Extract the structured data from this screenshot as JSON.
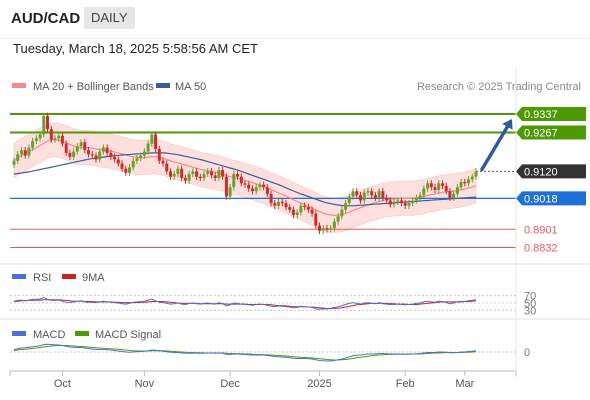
{
  "header": {
    "symbol": "AUD/CAD",
    "timeframe": "DAILY"
  },
  "datetime": "Tuesday, March 18, 2025 5:58:56 AM CET",
  "legend": {
    "ma20_label": "MA 20 + Bollinger Bands",
    "ma50_label": "MA 50",
    "credit": "Research © 2025 Trading Central"
  },
  "colors": {
    "up_candle": "#6b9e2c",
    "down_candle": "#cc2c2c",
    "ma20": "#f08c8c",
    "bollinger_fill": "#fde0dd",
    "ma50": "#3a5d9c",
    "resistance": "#4e9a06",
    "support": "#1f6fd8",
    "pivot_red": "#e05c5c",
    "current": "#333333",
    "rsi": "#4a6fd8",
    "rsi_ma": "#cc2222",
    "macd": "#4a6fd8",
    "macd_signal": "#4e9a06",
    "arrow": "#2d5aa0"
  },
  "chart_data": [
    {
      "type": "candlestick",
      "title": "AUD/CAD DAILY",
      "x_labels": [
        "Oct",
        "Nov",
        "Dec",
        "2025",
        "Feb",
        "Mar"
      ],
      "ylim": [
        0.88,
        0.939
      ],
      "levels": [
        {
          "value": 0.9337,
          "label": "0.9337",
          "kind": "resistance"
        },
        {
          "value": 0.9267,
          "label": "0.9267",
          "kind": "resistance"
        },
        {
          "value": 0.912,
          "label": "0.9120",
          "kind": "current"
        },
        {
          "value": 0.9018,
          "label": "0.9018",
          "kind": "support"
        },
        {
          "value": 0.8901,
          "label": "0.8901",
          "kind": "pivot"
        },
        {
          "value": 0.8832,
          "label": "0.8832",
          "kind": "pivot"
        }
      ],
      "close": [
        0.916,
        0.9185,
        0.92,
        0.918,
        0.921,
        0.9235,
        0.9245,
        0.926,
        0.933,
        0.928,
        0.924,
        0.9245,
        0.9255,
        0.9225,
        0.919,
        0.9175,
        0.9195,
        0.9215,
        0.923,
        0.92,
        0.9185,
        0.918,
        0.9165,
        0.9195,
        0.921,
        0.919,
        0.9175,
        0.9165,
        0.915,
        0.913,
        0.9115,
        0.9135,
        0.916,
        0.917,
        0.918,
        0.9195,
        0.9225,
        0.926,
        0.9205,
        0.916,
        0.915,
        0.912,
        0.91,
        0.911,
        0.913,
        0.9095,
        0.9085,
        0.911,
        0.912,
        0.91,
        0.9095,
        0.911,
        0.912,
        0.9105,
        0.9095,
        0.9125,
        0.91,
        0.9025,
        0.906,
        0.911,
        0.91,
        0.9075,
        0.907,
        0.9055,
        0.9045,
        0.906,
        0.907,
        0.906,
        0.9035,
        0.9,
        0.899,
        0.9005,
        0.9,
        0.8985,
        0.8975,
        0.8955,
        0.8965,
        0.899,
        0.8985,
        0.8975,
        0.896,
        0.8915,
        0.8895,
        0.8905,
        0.89,
        0.8905,
        0.893,
        0.895,
        0.8975,
        0.9,
        0.9025,
        0.9045,
        0.903,
        0.901,
        0.904,
        0.9045,
        0.903,
        0.902,
        0.9045,
        0.902,
        0.901,
        0.8995,
        0.9005,
        0.901,
        0.9,
        0.899,
        0.9,
        0.901,
        0.902,
        0.903,
        0.9055,
        0.9075,
        0.906,
        0.905,
        0.9075,
        0.9065,
        0.9045,
        0.902,
        0.9035,
        0.906,
        0.908,
        0.9075,
        0.909,
        0.91,
        0.912
      ],
      "ma20": [
        0.916,
        0.917,
        0.918,
        0.9188,
        0.9195,
        0.9202,
        0.921,
        0.9218,
        0.9226,
        0.9234,
        0.9238,
        0.924,
        0.9238,
        0.9234,
        0.9228,
        0.9222,
        0.9216,
        0.9212,
        0.921,
        0.921,
        0.921,
        0.9208,
        0.9205,
        0.9202,
        0.92,
        0.9198,
        0.9196,
        0.9193,
        0.919,
        0.9186,
        0.9182,
        0.9178,
        0.9175,
        0.9173,
        0.9172,
        0.9172,
        0.9174,
        0.9176,
        0.9176,
        0.9174,
        0.917,
        0.9165,
        0.916,
        0.9155,
        0.9152,
        0.9148,
        0.9144,
        0.914,
        0.9136,
        0.9132,
        0.9128,
        0.9125,
        0.9122,
        0.912,
        0.9117,
        0.9114,
        0.911,
        0.9105,
        0.91,
        0.9097,
        0.9094,
        0.909,
        0.9086,
        0.9082,
        0.9078,
        0.9073,
        0.9068,
        0.9063,
        0.9057,
        0.9051,
        0.9045,
        0.9039,
        0.9033,
        0.9027,
        0.902,
        0.9013,
        0.9006,
        0.9,
        0.8994,
        0.8988,
        0.8982,
        0.8975,
        0.8968,
        0.8962,
        0.8958,
        0.8955,
        0.8954,
        0.8955,
        0.8957,
        0.8961,
        0.8966,
        0.8972,
        0.8978,
        0.8983,
        0.8988,
        0.8993,
        0.8998,
        0.9002,
        0.9006,
        0.901,
        0.9013,
        0.9015,
        0.9016,
        0.9017,
        0.9018,
        0.9018,
        0.9018,
        0.9019,
        0.902,
        0.9022,
        0.9025,
        0.9029,
        0.9032,
        0.9035,
        0.9038,
        0.9041,
        0.9043,
        0.9044,
        0.9046,
        0.9048,
        0.905,
        0.9053,
        0.9057,
        0.9061,
        0.9066
      ],
      "ma50": [
        0.911,
        0.9112,
        0.9114,
        0.9116,
        0.9118,
        0.9121,
        0.9124,
        0.9127,
        0.913,
        0.9133,
        0.9136,
        0.9139,
        0.9142,
        0.9145,
        0.9148,
        0.9151,
        0.9154,
        0.9157,
        0.916,
        0.9163,
        0.9166,
        0.9168,
        0.917,
        0.9172,
        0.9174,
        0.9176,
        0.9178,
        0.918,
        0.9181,
        0.9182,
        0.9183,
        0.9184,
        0.9185,
        0.9186,
        0.9187,
        0.9188,
        0.9189,
        0.919,
        0.919,
        0.919,
        0.919,
        0.9189,
        0.9187,
        0.9185,
        0.9183,
        0.918,
        0.9177,
        0.9174,
        0.9171,
        0.9168,
        0.9165,
        0.9161,
        0.9157,
        0.9153,
        0.9149,
        0.9145,
        0.9141,
        0.9137,
        0.9133,
        0.9129,
        0.9125,
        0.912,
        0.9115,
        0.911,
        0.9105,
        0.91,
        0.9095,
        0.909,
        0.9085,
        0.908,
        0.9075,
        0.907,
        0.9064,
        0.9058,
        0.9052,
        0.9046,
        0.904,
        0.9035,
        0.903,
        0.9025,
        0.902,
        0.9015,
        0.901,
        0.9005,
        0.9001,
        0.8998,
        0.8995,
        0.8993,
        0.8991,
        0.899,
        0.899,
        0.899,
        0.8991,
        0.8992,
        0.8993,
        0.8994,
        0.8995,
        0.8996,
        0.8997,
        0.8998,
        0.8999,
        0.9,
        0.9001,
        0.9002,
        0.9003,
        0.9004,
        0.9005,
        0.9006,
        0.9007,
        0.9008,
        0.9009,
        0.901,
        0.9011,
        0.9012,
        0.9013,
        0.9014,
        0.9015,
        0.9016,
        0.9017,
        0.9018,
        0.9019,
        0.902,
        0.9021,
        0.9022,
        0.9023
      ],
      "bb_width": 0.0065,
      "forecast_arrow": {
        "from": 0.912,
        "to": 0.9337
      }
    },
    {
      "type": "line",
      "title": "RSI",
      "series": [
        {
          "name": "RSI"
        },
        {
          "name": "9MA"
        }
      ],
      "y_ticks": [
        "70",
        "50",
        "30"
      ],
      "ylim": [
        20,
        80
      ],
      "rsi": [
        55,
        57,
        58,
        56,
        58,
        60,
        60,
        61,
        65,
        60,
        57,
        57,
        58,
        55,
        52,
        51,
        53,
        55,
        56,
        53,
        52,
        52,
        51,
        53,
        55,
        53,
        52,
        51,
        50,
        48,
        47,
        49,
        52,
        53,
        54,
        55,
        58,
        61,
        56,
        52,
        51,
        49,
        47,
        48,
        50,
        47,
        46,
        49,
        50,
        48,
        47,
        49,
        50,
        48,
        47,
        51,
        48,
        42,
        45,
        50,
        49,
        47,
        46,
        45,
        44,
        46,
        47,
        46,
        44,
        41,
        40,
        42,
        41,
        40,
        39,
        37,
        38,
        41,
        40,
        39,
        38,
        34,
        33,
        34,
        34,
        35,
        38,
        40,
        43,
        46,
        49,
        51,
        49,
        47,
        50,
        51,
        49,
        48,
        51,
        48,
        47,
        45,
        46,
        47,
        46,
        45,
        46,
        47,
        49,
        50,
        53,
        55,
        53,
        52,
        55,
        54,
        51,
        48,
        50,
        53,
        55,
        54,
        56,
        57,
        59
      ],
      "rsi_ma": [
        54,
        55,
        56,
        56,
        57,
        57,
        58,
        58,
        59,
        59,
        59,
        59,
        59,
        58,
        57,
        56,
        55,
        55,
        55,
        54,
        54,
        54,
        53,
        53,
        53,
        53,
        53,
        52,
        52,
        51,
        51,
        51,
        51,
        51,
        52,
        52,
        53,
        54,
        54,
        54,
        54,
        53,
        52,
        51,
        50,
        49,
        49,
        49,
        49,
        49,
        48,
        48,
        48,
        48,
        48,
        48,
        48,
        47,
        47,
        47,
        47,
        47,
        47,
        46,
        46,
        46,
        46,
        46,
        46,
        45,
        44,
        43,
        43,
        42,
        41,
        40,
        40,
        40,
        40,
        39,
        39,
        38,
        37,
        36,
        35,
        35,
        35,
        36,
        37,
        39,
        41,
        43,
        45,
        46,
        47,
        48,
        49,
        49,
        49,
        49,
        49,
        48,
        48,
        47,
        47,
        47,
        46,
        46,
        46,
        47,
        48,
        49,
        50,
        51,
        52,
        53,
        53,
        53,
        53,
        53,
        53,
        54,
        54,
        55,
        56
      ]
    },
    {
      "type": "line",
      "title": "MACD",
      "series": [
        {
          "name": "MACD"
        },
        {
          "name": "MACD Signal"
        }
      ],
      "y_ticks": [
        "0"
      ],
      "ylim": [
        -0.006,
        0.004
      ],
      "macd": [
        0.001,
        0.0013,
        0.0016,
        0.0017,
        0.0019,
        0.0021,
        0.0023,
        0.0025,
        0.003,
        0.0031,
        0.003,
        0.0029,
        0.0028,
        0.0026,
        0.0023,
        0.002,
        0.0019,
        0.0018,
        0.0018,
        0.0016,
        0.0014,
        0.0012,
        0.001,
        0.001,
        0.001,
        0.0009,
        0.0008,
        0.0006,
        0.0004,
        0.0002,
        0.0,
        -0.0001,
        0.0,
        0.0001,
        0.0002,
        0.0003,
        0.0005,
        0.0008,
        0.0007,
        0.0005,
        0.0003,
        0.0001,
        -0.0001,
        -0.0002,
        -0.0002,
        -0.0004,
        -0.0005,
        -0.0005,
        -0.0004,
        -0.0005,
        -0.0005,
        -0.0005,
        -0.0004,
        -0.0004,
        -0.0005,
        -0.0004,
        -0.0005,
        -0.0009,
        -0.001,
        -0.0008,
        -0.0008,
        -0.0009,
        -0.001,
        -0.0011,
        -0.0012,
        -0.0012,
        -0.0012,
        -0.0012,
        -0.0014,
        -0.0016,
        -0.0018,
        -0.0019,
        -0.002,
        -0.0021,
        -0.0023,
        -0.0025,
        -0.0026,
        -0.0026,
        -0.0026,
        -0.0027,
        -0.0028,
        -0.0031,
        -0.0034,
        -0.0035,
        -0.0036,
        -0.0036,
        -0.0034,
        -0.0031,
        -0.0028,
        -0.0024,
        -0.0019,
        -0.0015,
        -0.0013,
        -0.0012,
        -0.001,
        -0.0008,
        -0.0008,
        -0.0008,
        -0.0006,
        -0.0006,
        -0.0007,
        -0.0008,
        -0.0008,
        -0.0008,
        -0.0008,
        -0.0009,
        -0.0008,
        -0.0008,
        -0.0007,
        -0.0006,
        -0.0004,
        -0.0002,
        -0.0002,
        -0.0002,
        0.0,
        0.0,
        -0.0001,
        -0.0003,
        -0.0003,
        -0.0002,
        0.0,
        0.0,
        0.0002,
        0.0003,
        0.0005
      ],
      "signal": [
        0.0006,
        0.0008,
        0.001,
        0.0011,
        0.0013,
        0.0014,
        0.0016,
        0.0018,
        0.002,
        0.0022,
        0.0024,
        0.0025,
        0.0026,
        0.0026,
        0.0026,
        0.0025,
        0.0024,
        0.0023,
        0.0022,
        0.0021,
        0.002,
        0.0018,
        0.0017,
        0.0016,
        0.0015,
        0.0014,
        0.0013,
        0.0012,
        0.0011,
        0.0009,
        0.0008,
        0.0006,
        0.0005,
        0.0004,
        0.0004,
        0.0004,
        0.0004,
        0.0005,
        0.0005,
        0.0005,
        0.0005,
        0.0004,
        0.0003,
        0.0002,
        0.0001,
        0.0,
        -0.0001,
        -0.0002,
        -0.0002,
        -0.0003,
        -0.0003,
        -0.0004,
        -0.0004,
        -0.0004,
        -0.0004,
        -0.0004,
        -0.0004,
        -0.0005,
        -0.0006,
        -0.0006,
        -0.0007,
        -0.0007,
        -0.0008,
        -0.0008,
        -0.0009,
        -0.001,
        -0.001,
        -0.0011,
        -0.0011,
        -0.0012,
        -0.0013,
        -0.0014,
        -0.0015,
        -0.0016,
        -0.0017,
        -0.0019,
        -0.002,
        -0.0021,
        -0.0022,
        -0.0023,
        -0.0024,
        -0.0025,
        -0.0027,
        -0.0028,
        -0.003,
        -0.0031,
        -0.0032,
        -0.0032,
        -0.0031,
        -0.003,
        -0.0028,
        -0.0026,
        -0.0023,
        -0.0021,
        -0.0019,
        -0.0017,
        -0.0015,
        -0.0013,
        -0.0012,
        -0.0011,
        -0.001,
        -0.001,
        -0.0009,
        -0.0009,
        -0.0009,
        -0.0009,
        -0.0009,
        -0.0008,
        -0.0008,
        -0.0008,
        -0.0007,
        -0.0006,
        -0.0005,
        -0.0004,
        -0.0004,
        -0.0003,
        -0.0002,
        -0.0002,
        -0.0002,
        -0.0002,
        -0.0002,
        -0.0001,
        -0.0001,
        0.0,
        0.0001
      ]
    }
  ]
}
